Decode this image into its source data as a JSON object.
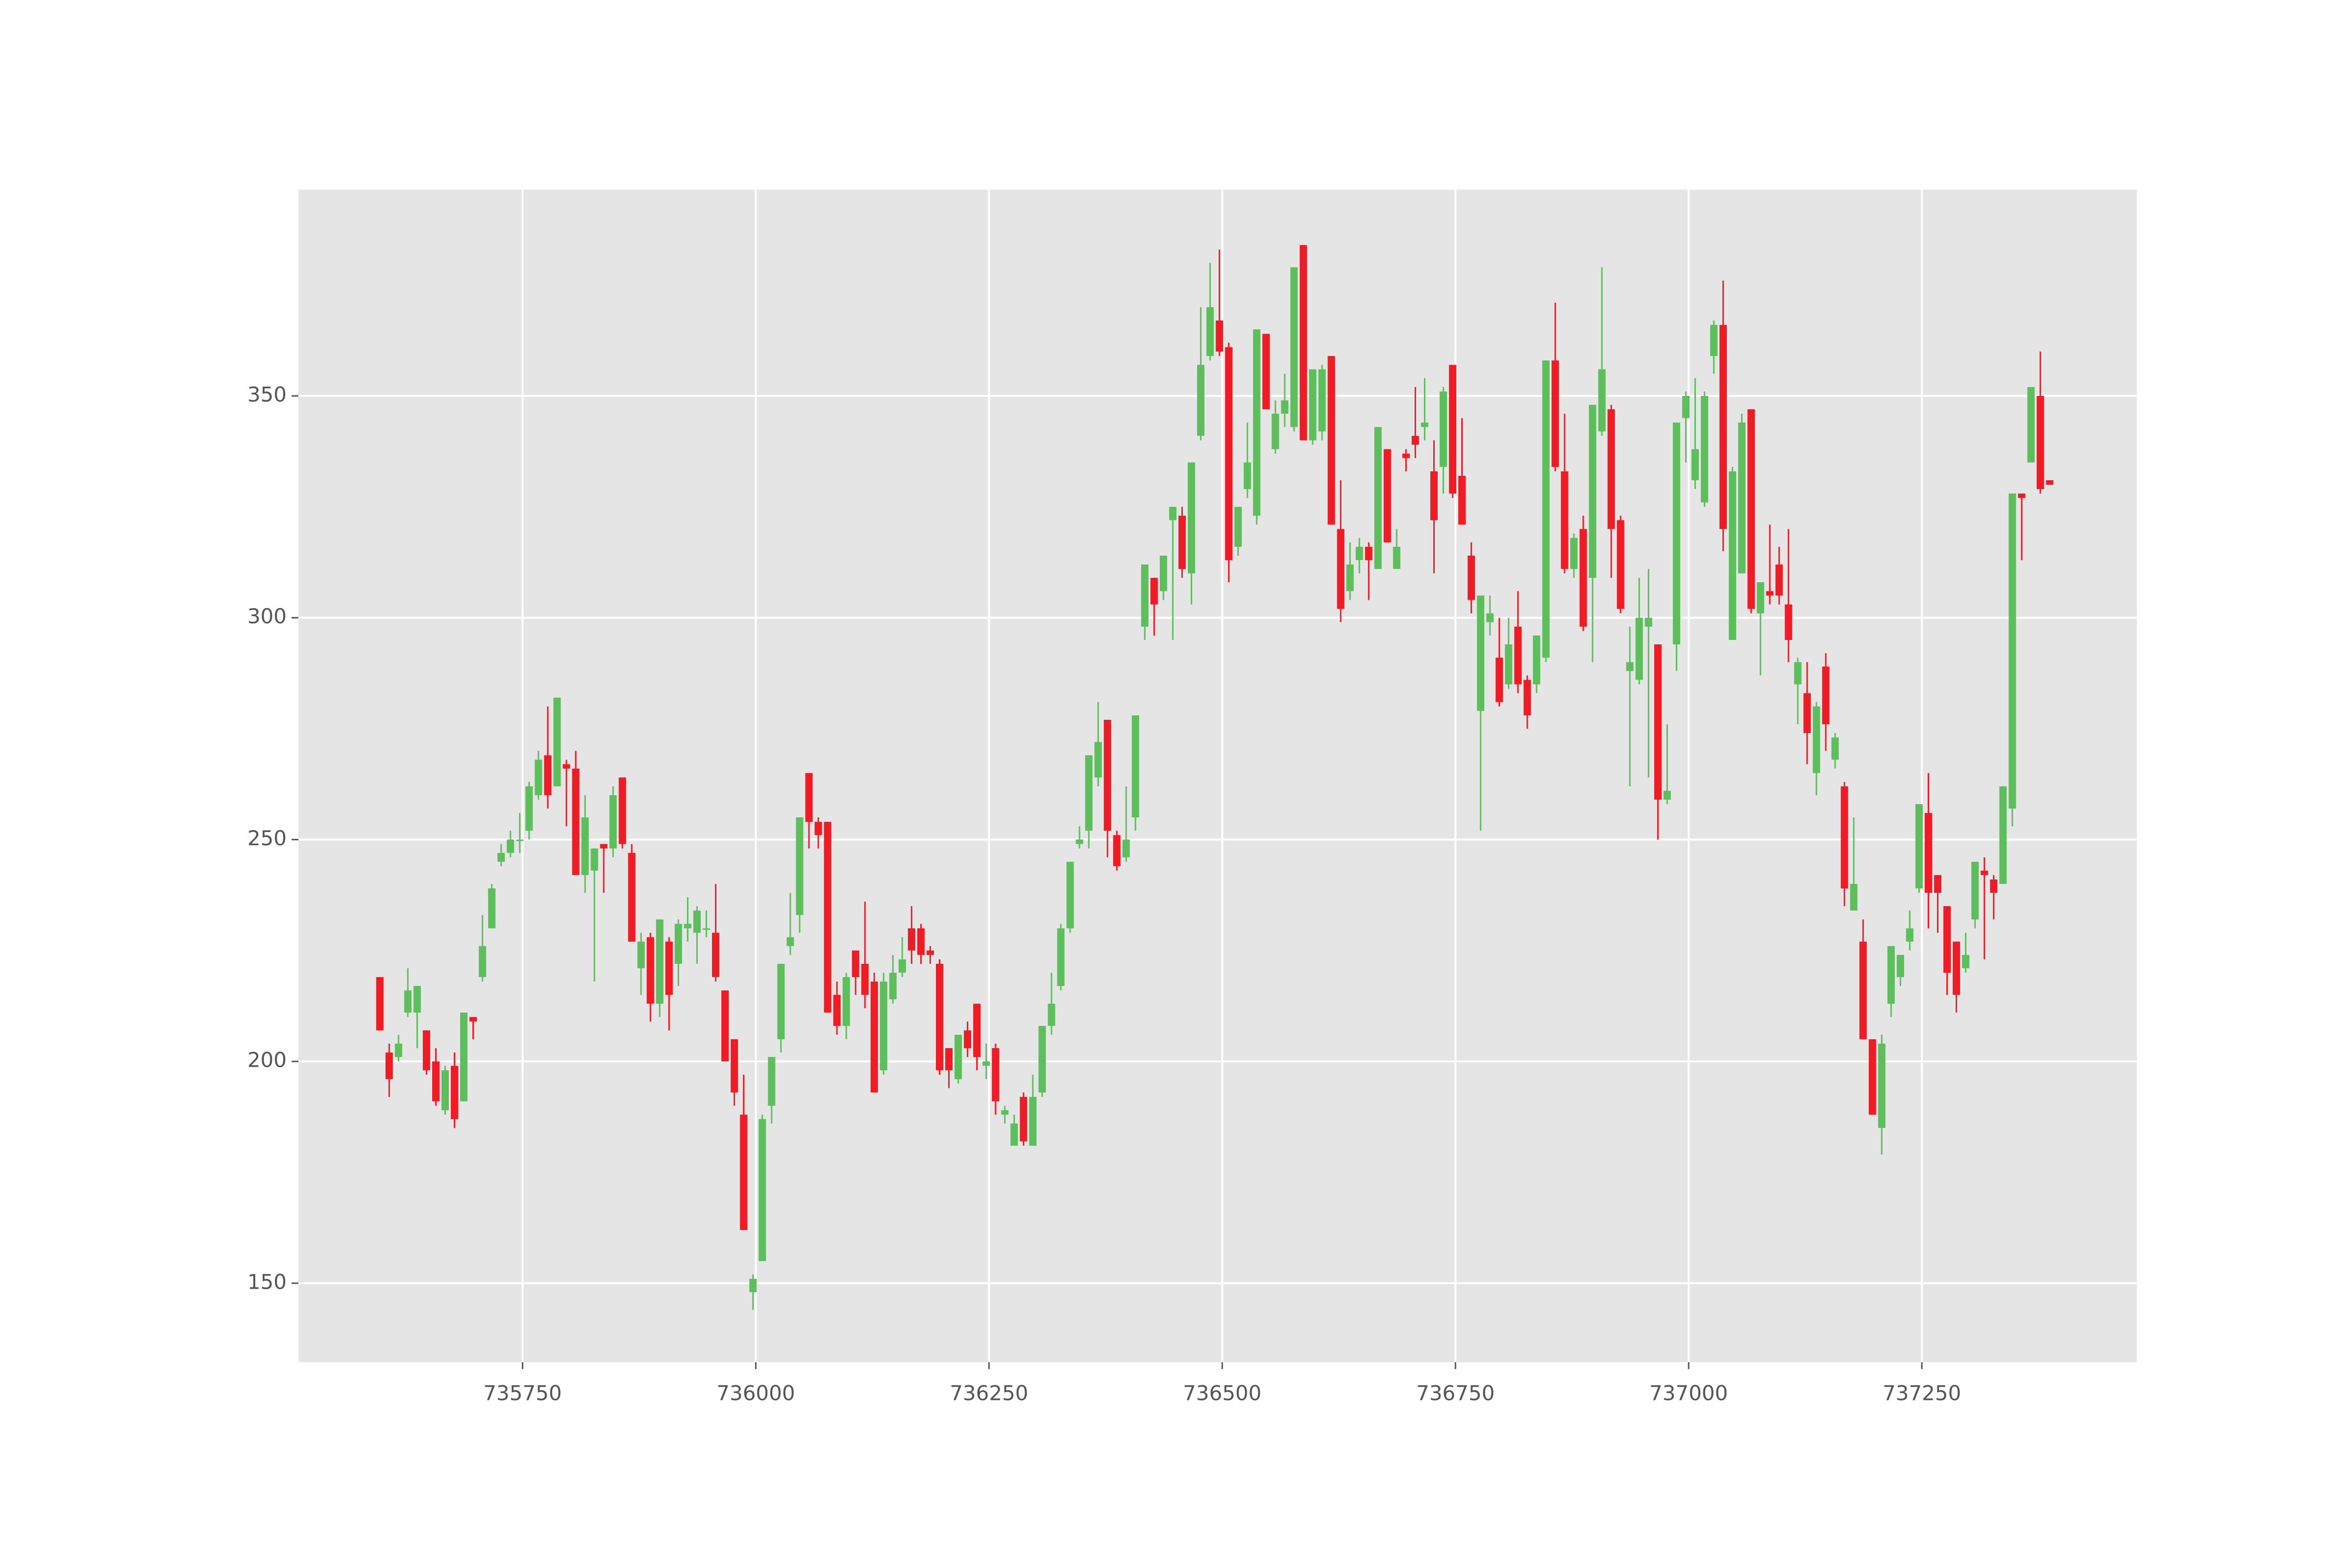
{
  "chart_data": {
    "type": "candlestick",
    "x": [
      735597,
      735607,
      735617,
      735627,
      735637,
      735647,
      735657,
      735667,
      735677,
      735687,
      735697,
      735707,
      735717,
      735727,
      735737,
      735747,
      735757,
      735767,
      735777,
      735787,
      735797,
      735807,
      735817,
      735827,
      735837,
      735847,
      735857,
      735867,
      735877,
      735887,
      735897,
      735907,
      735917,
      735927,
      735937,
      735947,
      735957,
      735967,
      735977,
      735987,
      735997,
      736007,
      736017,
      736027,
      736037,
      736047,
      736057,
      736067,
      736077,
      736087,
      736097,
      736107,
      736117,
      736127,
      736137,
      736147,
      736157,
      736167,
      736177,
      736187,
      736197,
      736207,
      736217,
      736227,
      736237,
      736247,
      736257,
      736267,
      736277,
      736287,
      736297,
      736307,
      736317,
      736327,
      736337,
      736347,
      736357,
      736367,
      736377,
      736387,
      736397,
      736407,
      736417,
      736427,
      736437,
      736447,
      736457,
      736467,
      736477,
      736487,
      736497,
      736507,
      736517,
      736527,
      736537,
      736547,
      736557,
      736567,
      736577,
      736587,
      736597,
      736607,
      736617,
      736627,
      736637,
      736647,
      736657,
      736667,
      736677,
      736687,
      736697,
      736707,
      736717,
      736727,
      736737,
      736747,
      736757,
      736767,
      736777,
      736787,
      736797,
      736807,
      736817,
      736827,
      736837,
      736847,
      736857,
      736867,
      736877,
      736887,
      736897,
      736907,
      736917,
      736927,
      736937,
      736947,
      736957,
      736967,
      736977,
      736987,
      736997,
      737007,
      737017,
      737027,
      737037,
      737047,
      737057,
      737067,
      737077,
      737087,
      737097,
      737107,
      737117,
      737127,
      737137,
      737147,
      737157,
      737167,
      737177,
      737187,
      737197,
      737207,
      737217,
      737227,
      737237,
      737247,
      737257,
      737267,
      737277,
      737287,
      737297,
      737307,
      737317,
      737327,
      737337,
      737347,
      737357,
      737367,
      737377,
      737387
    ],
    "open": [
      219,
      202,
      201,
      211,
      211,
      207,
      200,
      189,
      199,
      191,
      210,
      219,
      230,
      245,
      247,
      250,
      252,
      260,
      269,
      262,
      267,
      266,
      242,
      243,
      249,
      248,
      264,
      247,
      221,
      228,
      213,
      227,
      222,
      230,
      229,
      230,
      229,
      216,
      205,
      188,
      148,
      155,
      190,
      205,
      226,
      233,
      265,
      254,
      254,
      215,
      208,
      225,
      222,
      218,
      198,
      214,
      220,
      230,
      230,
      225,
      222,
      203,
      196,
      207,
      213,
      199,
      203,
      188,
      181,
      192,
      181,
      193,
      208,
      217,
      230,
      249,
      252,
      264,
      277,
      251,
      246,
      255,
      298,
      309,
      306,
      322,
      323,
      310,
      341,
      359,
      367,
      361,
      316,
      329,
      323,
      364,
      338,
      346,
      343,
      384,
      340,
      342,
      359,
      320,
      306,
      313,
      316,
      311,
      338,
      311,
      337,
      341,
      343,
      333,
      334,
      357,
      332,
      314,
      279,
      299,
      291,
      285,
      298,
      286,
      285,
      291,
      358,
      333,
      311,
      320,
      309,
      342,
      347,
      322,
      288,
      286,
      298,
      294,
      259,
      294,
      345,
      331,
      326,
      359,
      366,
      295,
      310,
      347,
      301,
      306,
      312,
      303,
      285,
      283,
      265,
      289,
      268,
      262,
      234,
      227,
      205,
      185,
      213,
      219,
      227,
      239,
      256,
      242,
      235,
      227,
      221,
      232,
      243,
      241,
      240,
      257,
      328,
      335,
      350,
      331
    ],
    "high": [
      219,
      204,
      206,
      221,
      217,
      207,
      203,
      199,
      202,
      211,
      210,
      233,
      240,
      249,
      252,
      256,
      263,
      270,
      280,
      282,
      268,
      270,
      260,
      248,
      249,
      262,
      264,
      249,
      229,
      229,
      232,
      228,
      232,
      237,
      235,
      234,
      240,
      216,
      205,
      197,
      152,
      188,
      201,
      222,
      238,
      255,
      265,
      255,
      254,
      218,
      220,
      225,
      236,
      220,
      220,
      224,
      228,
      235,
      231,
      226,
      223,
      203,
      206,
      209,
      213,
      204,
      204,
      190,
      188,
      193,
      197,
      208,
      220,
      231,
      245,
      253,
      269,
      281,
      277,
      252,
      262,
      278,
      312,
      309,
      314,
      325,
      325,
      335,
      370,
      380,
      383,
      362,
      325,
      344,
      365,
      364,
      349,
      355,
      379,
      384,
      356,
      357,
      359,
      331,
      317,
      318,
      317,
      343,
      338,
      320,
      338,
      352,
      354,
      340,
      352,
      357,
      345,
      317,
      305,
      305,
      300,
      300,
      306,
      287,
      296,
      358,
      371,
      346,
      319,
      323,
      348,
      379,
      348,
      323,
      298,
      309,
      311,
      294,
      276,
      344,
      351,
      354,
      351,
      367,
      376,
      334,
      346,
      347,
      308,
      321,
      316,
      320,
      291,
      290,
      281,
      292,
      274,
      263,
      255,
      232,
      205,
      206,
      226,
      224,
      234,
      258,
      265,
      242,
      235,
      227,
      229,
      245,
      246,
      242,
      262,
      328,
      328,
      352,
      360,
      331
    ],
    "low": [
      207,
      192,
      200,
      210,
      203,
      197,
      190,
      188,
      185,
      191,
      205,
      218,
      230,
      244,
      246,
      247,
      250,
      259,
      257,
      262,
      253,
      242,
      238,
      218,
      238,
      246,
      248,
      227,
      215,
      209,
      210,
      207,
      217,
      227,
      222,
      228,
      218,
      200,
      190,
      162,
      144,
      155,
      186,
      202,
      224,
      229,
      248,
      248,
      211,
      206,
      205,
      215,
      212,
      193,
      197,
      213,
      219,
      222,
      222,
      222,
      197,
      194,
      195,
      201,
      198,
      196,
      188,
      186,
      181,
      181,
      181,
      192,
      206,
      216,
      229,
      248,
      248,
      262,
      246,
      243,
      245,
      252,
      295,
      296,
      304,
      295,
      309,
      303,
      340,
      358,
      359,
      308,
      314,
      327,
      321,
      347,
      337,
      343,
      342,
      340,
      339,
      340,
      321,
      299,
      304,
      310,
      304,
      311,
      317,
      311,
      333,
      336,
      340,
      310,
      328,
      327,
      321,
      301,
      252,
      296,
      280,
      284,
      283,
      275,
      283,
      290,
      333,
      310,
      309,
      297,
      290,
      341,
      309,
      301,
      262,
      285,
      264,
      250,
      258,
      288,
      335,
      329,
      325,
      355,
      315,
      295,
      310,
      301,
      287,
      303,
      303,
      290,
      276,
      267,
      260,
      270,
      266,
      235,
      234,
      205,
      188,
      179,
      210,
      217,
      225,
      238,
      230,
      229,
      215,
      211,
      220,
      230,
      223,
      232,
      240,
      253,
      313,
      335,
      328,
      330
    ],
    "close": [
      207,
      196,
      204,
      216,
      217,
      198,
      191,
      198,
      187,
      211,
      209,
      226,
      239,
      247,
      250,
      250,
      262,
      268,
      260,
      282,
      266,
      242,
      255,
      248,
      248,
      260,
      249,
      227,
      227,
      213,
      232,
      215,
      231,
      231,
      234,
      230,
      219,
      200,
      193,
      162,
      151,
      187,
      201,
      222,
      228,
      255,
      254,
      251,
      211,
      208,
      219,
      219,
      215,
      193,
      218,
      220,
      223,
      225,
      224,
      224,
      198,
      198,
      206,
      203,
      201,
      200,
      191,
      189,
      186,
      182,
      192,
      208,
      213,
      230,
      245,
      250,
      269,
      272,
      252,
      244,
      250,
      278,
      312,
      303,
      314,
      325,
      311,
      335,
      357,
      370,
      360,
      313,
      325,
      335,
      365,
      347,
      346,
      349,
      379,
      340,
      356,
      356,
      321,
      302,
      312,
      316,
      313,
      343,
      317,
      316,
      336,
      339,
      344,
      322,
      351,
      328,
      321,
      304,
      305,
      301,
      281,
      294,
      285,
      278,
      296,
      358,
      334,
      311,
      318,
      298,
      348,
      356,
      320,
      302,
      290,
      300,
      300,
      259,
      261,
      344,
      350,
      338,
      350,
      366,
      320,
      333,
      344,
      302,
      308,
      305,
      305,
      295,
      290,
      274,
      280,
      276,
      273,
      239,
      240,
      205,
      188,
      204,
      226,
      224,
      230,
      258,
      238,
      238,
      220,
      215,
      224,
      245,
      242,
      238,
      262,
      328,
      327,
      352,
      329,
      330
    ],
    "up_color": "#5cbf5c",
    "down_color": "#ee1c25",
    "xlim": [
      735509.7,
      737480.5
    ],
    "ylim": [
      132.2,
      396.5
    ],
    "xticks": [
      735750,
      736000,
      736250,
      736500,
      736750,
      737000,
      737250
    ],
    "yticks": [
      150,
      200,
      250,
      300,
      350
    ],
    "grid": true
  }
}
